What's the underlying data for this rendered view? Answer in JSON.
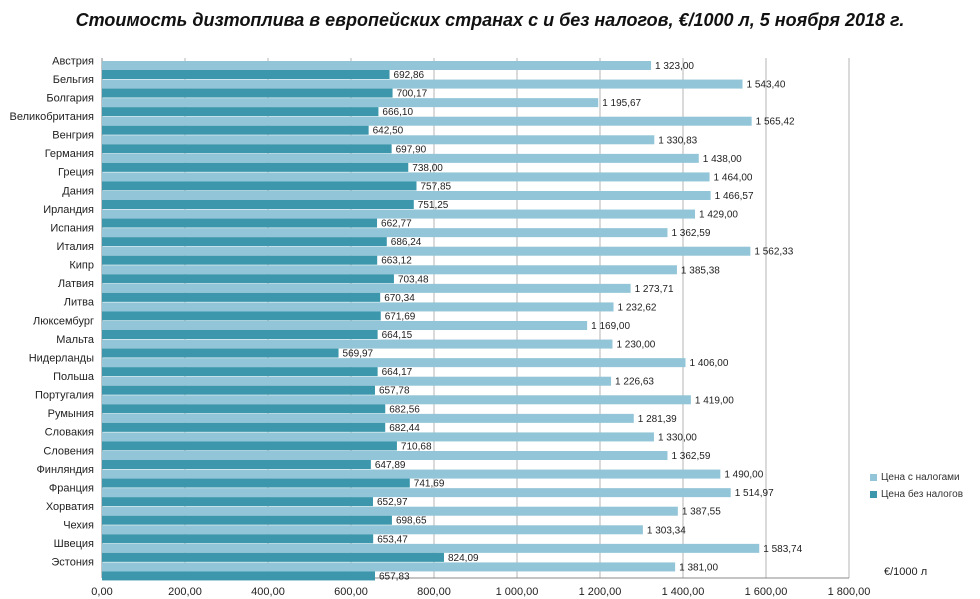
{
  "chart_data": {
    "type": "bar",
    "orientation": "horizontal",
    "title": "Стоимость дизтоплива в европейских странах с и без налогов, €/1000 л, 5 ноября 2018 г.",
    "xlabel": "€/1000 л",
    "xlim": [
      0,
      1800
    ],
    "xticks": [
      0,
      200,
      400,
      600,
      800,
      1000,
      1200,
      1400,
      1600,
      1800
    ],
    "xtick_labels": [
      "0,00",
      "200,00",
      "400,00",
      "600,00",
      "800,00",
      "1 000,00",
      "1 200,00",
      "1 400,00",
      "1 600,00",
      "1 800,00"
    ],
    "grid": "vertical",
    "legend_position": "right",
    "categories": [
      "Австрия",
      "Бельгия",
      "Болгария",
      "Великобритания",
      "Венгрия",
      "Германия",
      "Греция",
      "Дания",
      "Ирландия",
      "Испания",
      "Италия",
      "Кипр",
      "Латвия",
      "Литва",
      "Люксембург",
      "Мальта",
      "Нидерланды",
      "Польша",
      "Португалия",
      "Румыния",
      "Словакия",
      "Словения",
      "Финляндия",
      "Франция",
      "Хорватия",
      "Чехия",
      "Швеция",
      "Эстония"
    ],
    "series": [
      {
        "name": "Цена с налогами",
        "color": "#92c5d7",
        "values": [
          1323.0,
          1543.4,
          1195.67,
          1565.42,
          1330.83,
          1438.0,
          1464.0,
          1466.57,
          1429.0,
          1362.59,
          1562.33,
          1385.38,
          1273.71,
          1232.62,
          1169.0,
          1230.0,
          1406.0,
          1226.63,
          1419.0,
          1281.39,
          1330.0,
          1362.59,
          1490.0,
          1514.97,
          1387.55,
          1303.34,
          1583.74,
          1381.0
        ],
        "labels": [
          "1 323,00",
          "1 543,40",
          "1 195,67",
          "1 565,42",
          "1 330,83",
          "1 438,00",
          "1 464,00",
          "1 466,57",
          "1 429,00",
          "1 362,59",
          "1 562,33",
          "1 385,38",
          "1 273,71",
          "1 232,62",
          "1 169,00",
          "1 230,00",
          "1 406,00",
          "1 226,63",
          "1 419,00",
          "1 281,39",
          "1 330,00",
          "1 362,59",
          "1 490,00",
          "1 514,97",
          "1 387,55",
          "1 303,34",
          "1 583,74",
          "1 381,00"
        ]
      },
      {
        "name": "Цена без налогов",
        "color": "#3c97ad",
        "values": [
          692.86,
          700.17,
          666.1,
          642.5,
          697.9,
          738.0,
          757.85,
          751.25,
          662.77,
          686.24,
          663.12,
          703.48,
          670.34,
          671.69,
          664.15,
          569.97,
          664.17,
          657.78,
          682.56,
          682.44,
          710.68,
          647.89,
          741.69,
          652.97,
          698.65,
          653.47,
          824.09,
          657.83
        ],
        "labels": [
          "692,86",
          "700,17",
          "666,10",
          "642,50",
          "697,90",
          "738,00",
          "757,85",
          "751,25",
          "662,77",
          "686,24",
          "663,12",
          "703,48",
          "670,34",
          "671,69",
          "664,15",
          "569,97",
          "664,17",
          "657,78",
          "682,56",
          "682,44",
          "710,68",
          "647,89",
          "741,69",
          "652,97",
          "698,65",
          "653,47",
          "824,09",
          "657,83"
        ]
      }
    ]
  }
}
